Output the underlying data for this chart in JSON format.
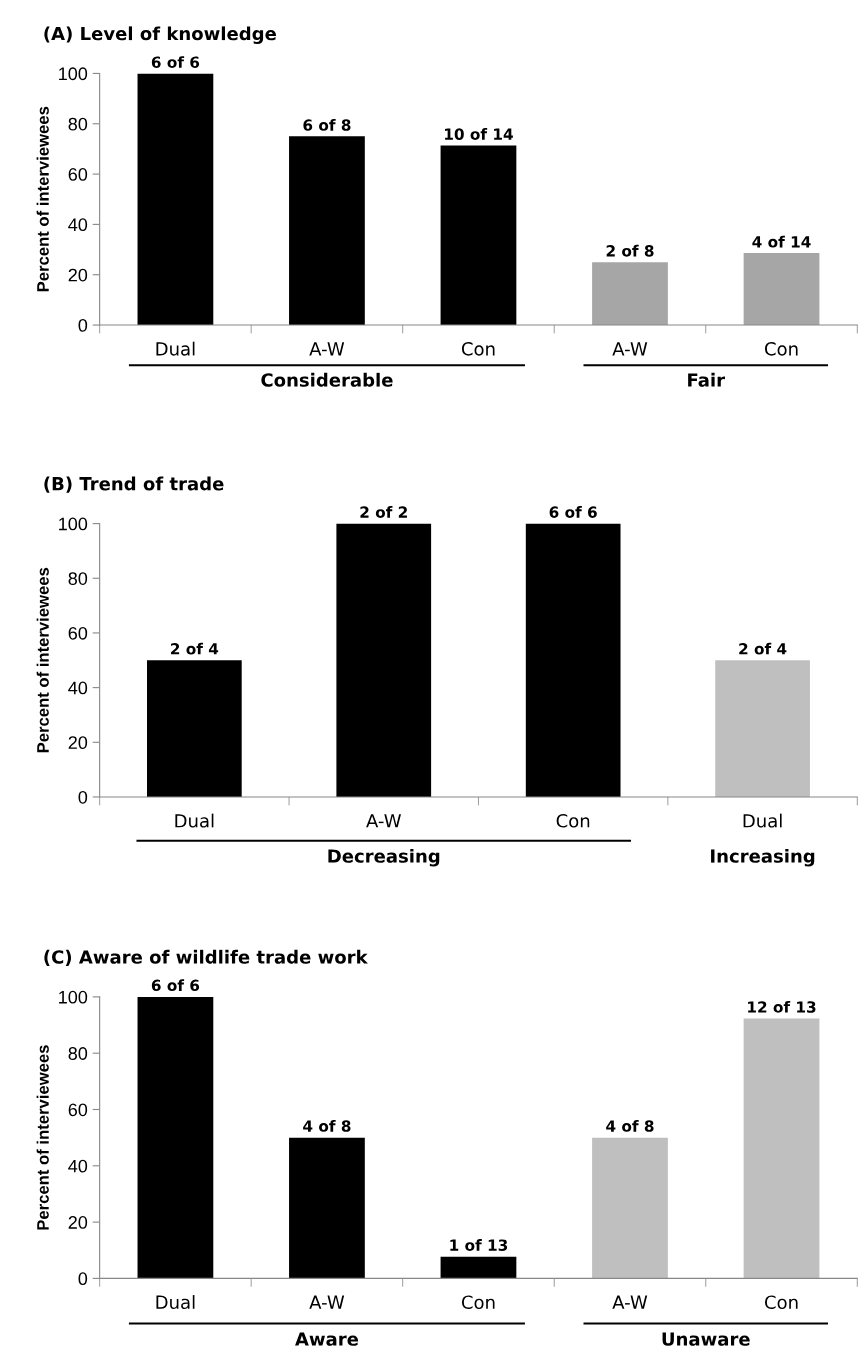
{
  "chart_data": [
    {
      "type": "bar",
      "title": "(A) Level of knowledge",
      "ylabel": "Percent of interviewees",
      "categories": [
        "Dual",
        "A-W",
        "Con",
        "A-W",
        "Con"
      ],
      "values": [
        100,
        75,
        71.4,
        25,
        28.6
      ],
      "colors": [
        "#000000",
        "#000000",
        "#000000",
        "#a6a6a6",
        "#a6a6a6"
      ],
      "ylim": [
        0,
        100
      ],
      "yticks": [
        0,
        20,
        40,
        60,
        80,
        100
      ],
      "grid": false,
      "legend": false,
      "annotations": [
        {
          "text": "6 of 6",
          "x": "Dual",
          "y": 100
        },
        {
          "text": "6 of 8",
          "x": "A-W",
          "y": 75
        },
        {
          "text": "10 of 14",
          "x": "Con",
          "y": 71.4
        },
        "2 of 8",
        "4 of 14",
        "Considerable",
        "Fair"
      ]
    },
    {
      "type": "bar",
      "title": "(B) Trend of trade",
      "ylabel": "Percent of interviewees",
      "categories": [
        "Dual",
        "A-W",
        "Con",
        "Dual"
      ],
      "values": [
        50,
        100,
        100,
        50
      ],
      "colors": [
        "#000000",
        "#000000",
        "#000000",
        "#bfbfbf"
      ],
      "ylim": [
        0,
        100
      ],
      "yticks": [
        0,
        20,
        40,
        60,
        80,
        100
      ],
      "grid": false,
      "legend": false,
      "annotations": [
        {
          "text": "2 of 4",
          "x": "Dual",
          "y": 50
        },
        {
          "text": "2 of 2",
          "x": "A-W",
          "y": 100
        },
        {
          "text": "6 of 6",
          "x": "Con",
          "y": 100
        },
        "2 of 4",
        "Decreasing",
        "Increasing"
      ]
    },
    {
      "type": "bar",
      "title": "(C) Aware of wildlife trade work",
      "ylabel": "Percent of interviewees",
      "categories": [
        "Dual",
        "A-W",
        "Con",
        "A-W",
        "Con"
      ],
      "values": [
        100,
        50,
        7.7,
        50,
        92.3
      ],
      "colors": [
        "#000000",
        "#000000",
        "#000000",
        "#bfbfbf",
        "#bfbfbf"
      ],
      "ylim": [
        0,
        100
      ],
      "yticks": [
        0,
        20,
        40,
        60,
        80,
        100
      ],
      "grid": false,
      "legend": false,
      "annotations": [
        {
          "text": "6 of 6",
          "x": "Dual",
          "y": 100
        },
        {
          "text": "4 of 8",
          "x": "A-W",
          "y": 50
        },
        {
          "text": "1 of 13",
          "x": "Con",
          "y": 7.7
        },
        "4 of 8",
        "12 of 13",
        "Aware",
        "Unaware"
      ]
    }
  ]
}
